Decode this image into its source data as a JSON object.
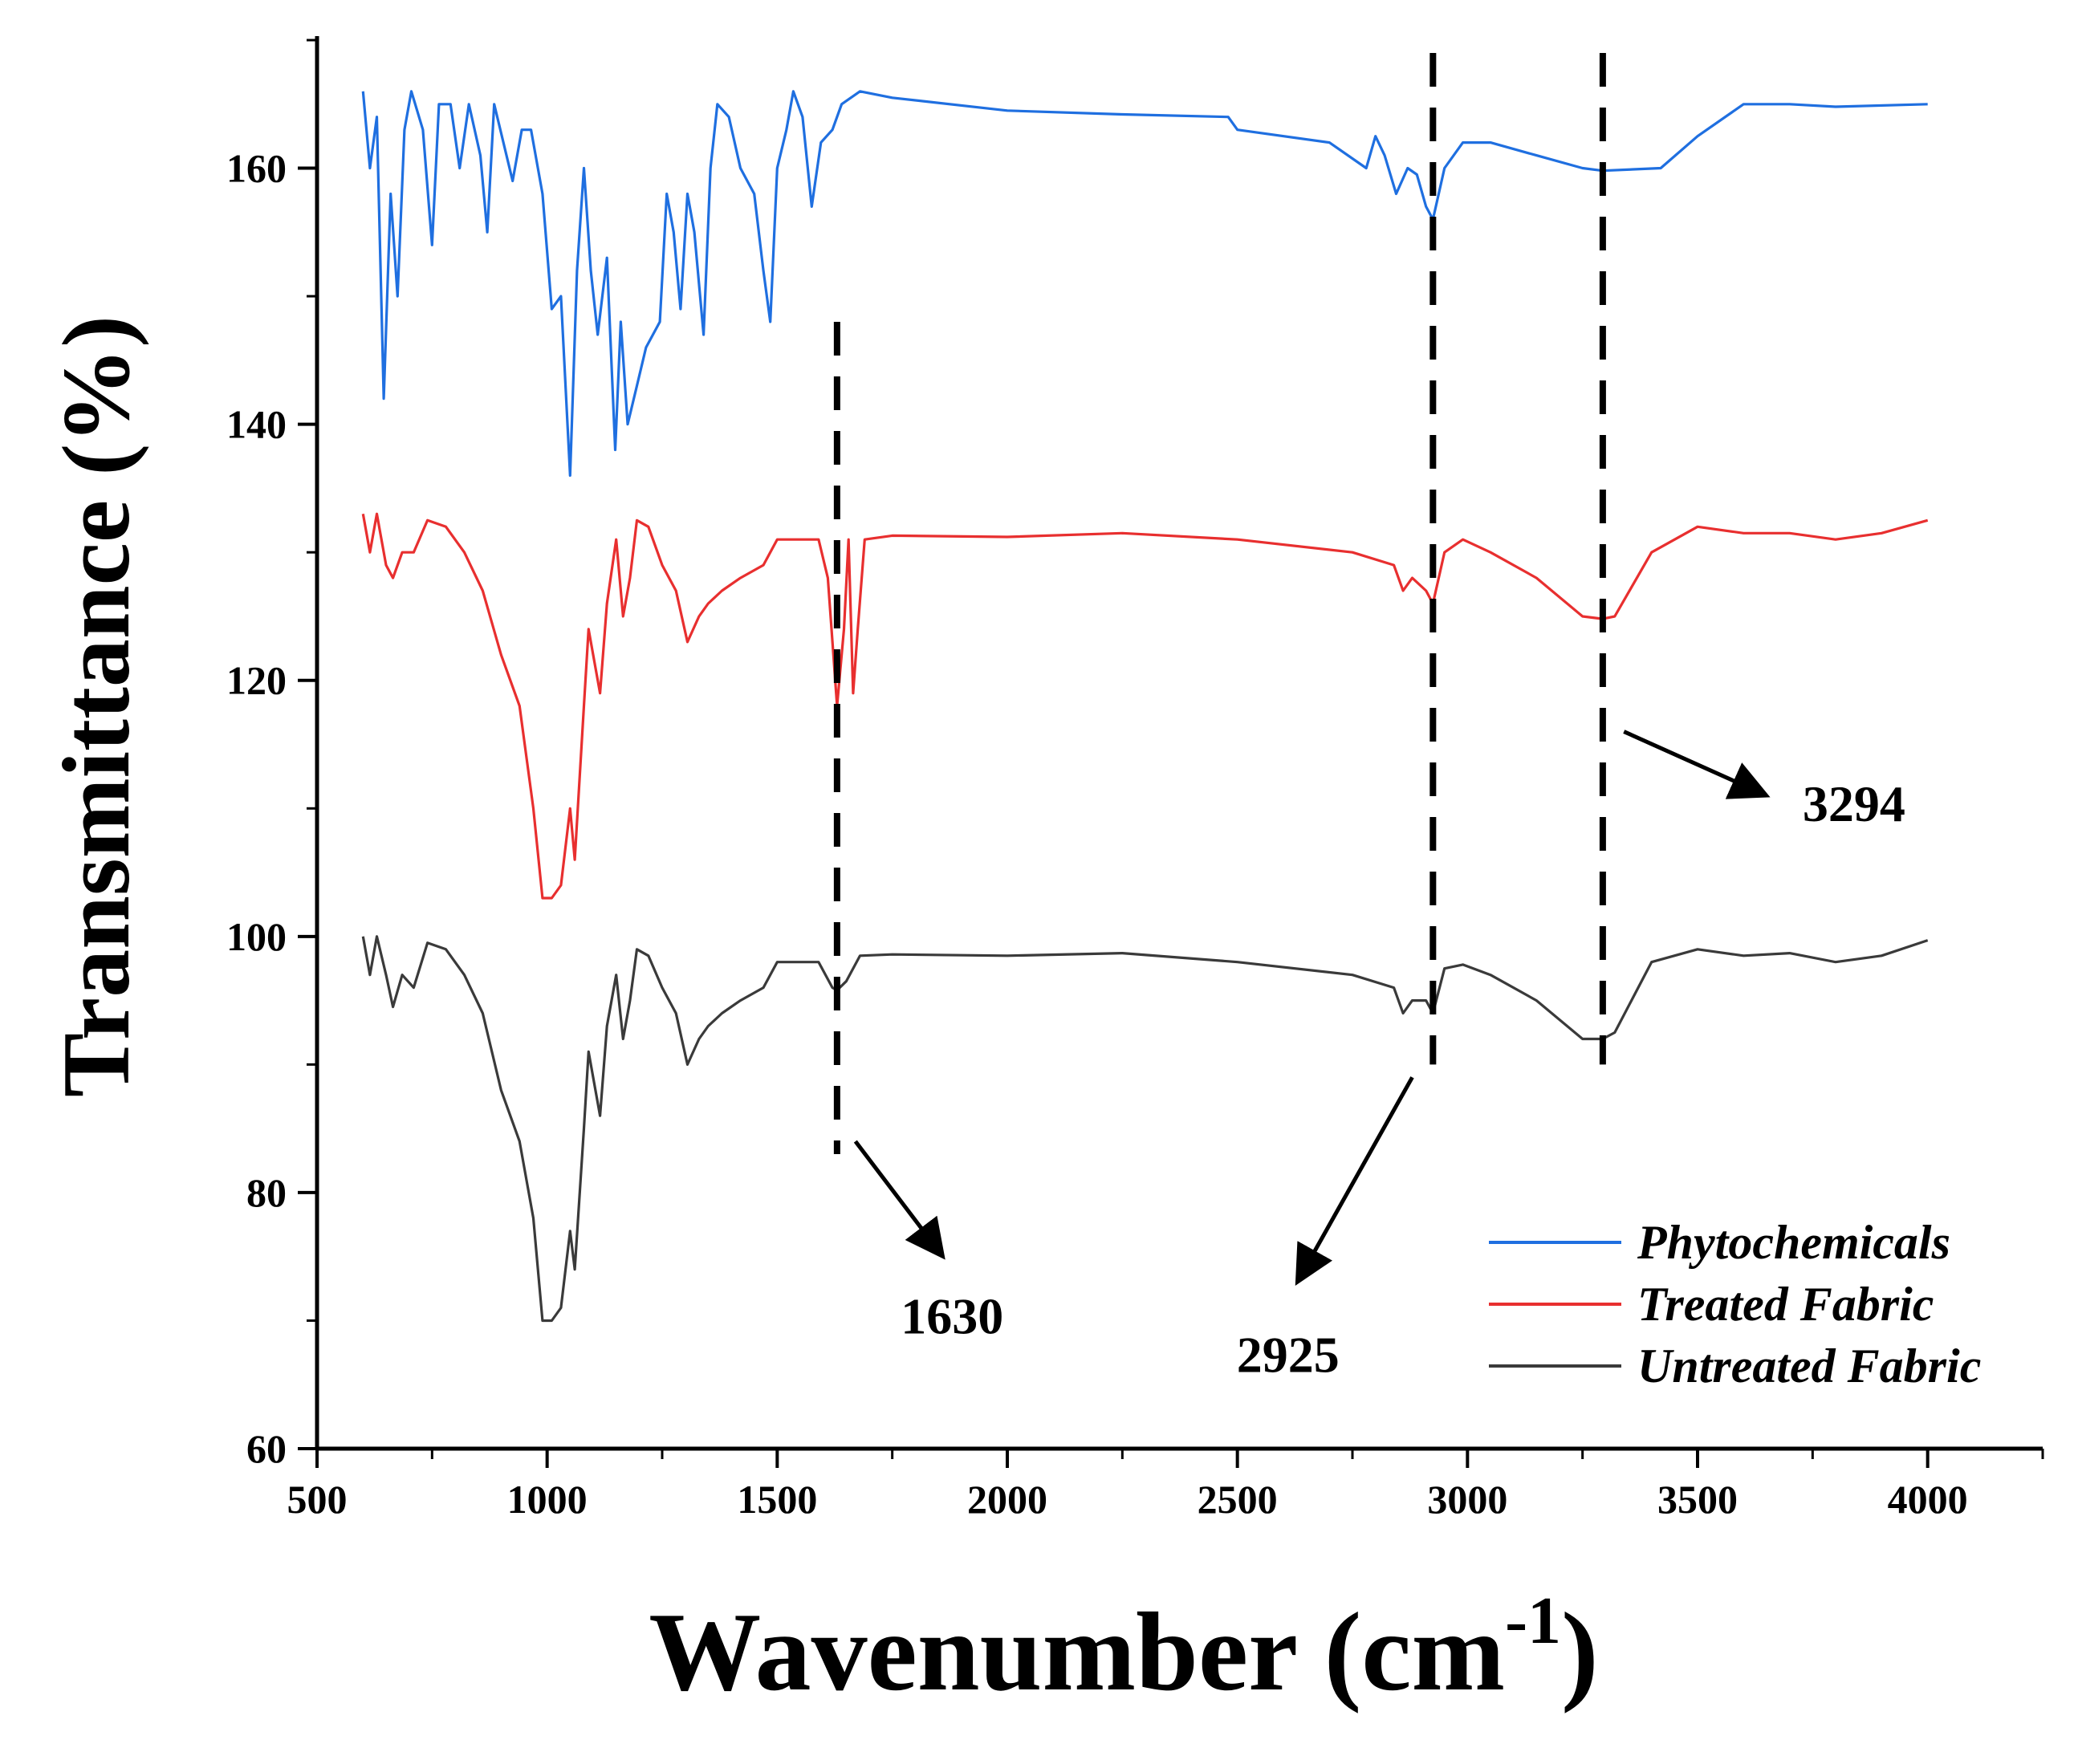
{
  "chart_data": {
    "type": "line",
    "title": "",
    "xlabel": "Wavenumber (cm",
    "xlabel_sup": "-1",
    "xlabel_close": ")",
    "ylabel": "Transmittance (%)",
    "xlim": [
      500,
      4250
    ],
    "ylim": [
      60,
      170
    ],
    "x_ticks": [
      500,
      1000,
      1500,
      2000,
      2500,
      3000,
      3500,
      4000
    ],
    "x_tick_labels": [
      "500",
      "1000",
      "1500",
      "2000",
      "2500",
      "3000",
      "3500",
      "4000"
    ],
    "y_ticks": [
      60,
      80,
      100,
      120,
      140,
      160
    ],
    "y_tick_labels": [
      "60",
      "80",
      "100",
      "120",
      "140",
      "160"
    ],
    "grid": false,
    "legend_position": "bottom-right",
    "series": [
      {
        "name": "Phytochemicals",
        "color": "#1f6fe0",
        "points": [
          [
            600,
            166
          ],
          [
            615,
            160
          ],
          [
            630,
            164
          ],
          [
            645,
            142
          ],
          [
            660,
            158
          ],
          [
            675,
            150
          ],
          [
            690,
            163
          ],
          [
            705,
            166
          ],
          [
            730,
            163
          ],
          [
            750,
            154
          ],
          [
            765,
            165
          ],
          [
            790,
            165
          ],
          [
            810,
            160
          ],
          [
            830,
            165
          ],
          [
            855,
            161
          ],
          [
            870,
            155
          ],
          [
            885,
            165
          ],
          [
            905,
            162
          ],
          [
            925,
            159
          ],
          [
            945,
            163
          ],
          [
            965,
            163
          ],
          [
            990,
            158
          ],
          [
            1010,
            149
          ],
          [
            1030,
            150
          ],
          [
            1050,
            136
          ],
          [
            1065,
            152
          ],
          [
            1080,
            160
          ],
          [
            1095,
            152
          ],
          [
            1110,
            147
          ],
          [
            1130,
            153
          ],
          [
            1148,
            138
          ],
          [
            1160,
            148
          ],
          [
            1175,
            140
          ],
          [
            1195,
            143
          ],
          [
            1215,
            146
          ],
          [
            1245,
            148
          ],
          [
            1260,
            158
          ],
          [
            1275,
            155
          ],
          [
            1290,
            149
          ],
          [
            1305,
            158
          ],
          [
            1320,
            155
          ],
          [
            1340,
            147
          ],
          [
            1355,
            160
          ],
          [
            1370,
            165
          ],
          [
            1395,
            164
          ],
          [
            1420,
            160
          ],
          [
            1450,
            158
          ],
          [
            1470,
            152
          ],
          [
            1485,
            148
          ],
          [
            1500,
            160
          ],
          [
            1520,
            163
          ],
          [
            1535,
            166
          ],
          [
            1555,
            164
          ],
          [
            1575,
            157
          ],
          [
            1595,
            162
          ],
          [
            1620,
            163
          ],
          [
            1640,
            165
          ],
          [
            1680,
            166
          ],
          [
            1750,
            165.5
          ],
          [
            2000,
            164.5
          ],
          [
            2250,
            164.2
          ],
          [
            2480,
            164
          ],
          [
            2500,
            163
          ],
          [
            2700,
            162
          ],
          [
            2780,
            160
          ],
          [
            2800,
            162.5
          ],
          [
            2820,
            161
          ],
          [
            2845,
            158
          ],
          [
            2870,
            160
          ],
          [
            2890,
            159.5
          ],
          [
            2910,
            157
          ],
          [
            2925,
            156
          ],
          [
            2950,
            160
          ],
          [
            2990,
            162
          ],
          [
            3050,
            162
          ],
          [
            3150,
            161
          ],
          [
            3250,
            160
          ],
          [
            3294,
            159.8
          ],
          [
            3420,
            160
          ],
          [
            3500,
            162.5
          ],
          [
            3600,
            165
          ],
          [
            3700,
            165
          ],
          [
            3800,
            164.8
          ],
          [
            4000,
            165
          ]
        ]
      },
      {
        "name": "Treated Fabric",
        "color": "#e82f2f",
        "points": [
          [
            600,
            133
          ],
          [
            615,
            130
          ],
          [
            630,
            133
          ],
          [
            650,
            129
          ],
          [
            665,
            128
          ],
          [
            685,
            130
          ],
          [
            710,
            130
          ],
          [
            740,
            132.5
          ],
          [
            780,
            132
          ],
          [
            820,
            130
          ],
          [
            860,
            127
          ],
          [
            900,
            122
          ],
          [
            940,
            118
          ],
          [
            970,
            110
          ],
          [
            990,
            103
          ],
          [
            1010,
            103
          ],
          [
            1030,
            104
          ],
          [
            1050,
            110
          ],
          [
            1060,
            106
          ],
          [
            1080,
            118
          ],
          [
            1090,
            124
          ],
          [
            1100,
            122
          ],
          [
            1115,
            119
          ],
          [
            1130,
            126
          ],
          [
            1150,
            131
          ],
          [
            1165,
            125
          ],
          [
            1180,
            128
          ],
          [
            1195,
            132.5
          ],
          [
            1220,
            132
          ],
          [
            1250,
            129
          ],
          [
            1280,
            127
          ],
          [
            1305,
            123
          ],
          [
            1330,
            125
          ],
          [
            1350,
            126
          ],
          [
            1380,
            127
          ],
          [
            1420,
            128
          ],
          [
            1470,
            129
          ],
          [
            1500,
            131
          ],
          [
            1590,
            131
          ],
          [
            1610,
            128
          ],
          [
            1630,
            118
          ],
          [
            1645,
            124
          ],
          [
            1655,
            131
          ],
          [
            1665,
            119
          ],
          [
            1675,
            124
          ],
          [
            1690,
            131
          ],
          [
            1750,
            131.3
          ],
          [
            2000,
            131.2
          ],
          [
            2250,
            131.5
          ],
          [
            2500,
            131
          ],
          [
            2750,
            130
          ],
          [
            2840,
            129
          ],
          [
            2860,
            127
          ],
          [
            2880,
            128
          ],
          [
            2910,
            127
          ],
          [
            2925,
            126
          ],
          [
            2950,
            130
          ],
          [
            2990,
            131
          ],
          [
            3050,
            130
          ],
          [
            3150,
            128
          ],
          [
            3250,
            125
          ],
          [
            3294,
            124.8
          ],
          [
            3320,
            125
          ],
          [
            3400,
            130
          ],
          [
            3500,
            132
          ],
          [
            3600,
            131.5
          ],
          [
            3700,
            131.5
          ],
          [
            3800,
            131
          ],
          [
            3900,
            131.5
          ],
          [
            4000,
            132.5
          ]
        ]
      },
      {
        "name": "Untreated Fabric",
        "color": "#3a3a3a",
        "points": [
          [
            600,
            100
          ],
          [
            615,
            97
          ],
          [
            630,
            100
          ],
          [
            650,
            97
          ],
          [
            665,
            94.5
          ],
          [
            685,
            97
          ],
          [
            710,
            96
          ],
          [
            740,
            99.5
          ],
          [
            780,
            99
          ],
          [
            820,
            97
          ],
          [
            860,
            94
          ],
          [
            900,
            88
          ],
          [
            940,
            84
          ],
          [
            970,
            78
          ],
          [
            990,
            70
          ],
          [
            1010,
            70
          ],
          [
            1030,
            71
          ],
          [
            1050,
            77
          ],
          [
            1060,
            74
          ],
          [
            1080,
            85
          ],
          [
            1090,
            91
          ],
          [
            1100,
            89
          ],
          [
            1115,
            86
          ],
          [
            1130,
            93
          ],
          [
            1150,
            97
          ],
          [
            1165,
            92
          ],
          [
            1180,
            95
          ],
          [
            1195,
            99
          ],
          [
            1220,
            98.5
          ],
          [
            1250,
            96
          ],
          [
            1280,
            94
          ],
          [
            1305,
            90
          ],
          [
            1330,
            92
          ],
          [
            1350,
            93
          ],
          [
            1380,
            94
          ],
          [
            1420,
            95
          ],
          [
            1470,
            96
          ],
          [
            1500,
            98
          ],
          [
            1590,
            98
          ],
          [
            1620,
            96
          ],
          [
            1630,
            95.8
          ],
          [
            1650,
            96.5
          ],
          [
            1680,
            98.5
          ],
          [
            1750,
            98.6
          ],
          [
            2000,
            98.5
          ],
          [
            2250,
            98.7
          ],
          [
            2500,
            98
          ],
          [
            2750,
            97
          ],
          [
            2840,
            96
          ],
          [
            2860,
            94
          ],
          [
            2880,
            95
          ],
          [
            2910,
            95
          ],
          [
            2925,
            94
          ],
          [
            2950,
            97.5
          ],
          [
            2990,
            97.8
          ],
          [
            3050,
            97
          ],
          [
            3150,
            95
          ],
          [
            3250,
            92
          ],
          [
            3294,
            92
          ],
          [
            3320,
            92.5
          ],
          [
            3400,
            98
          ],
          [
            3500,
            99
          ],
          [
            3600,
            98.5
          ],
          [
            3700,
            98.7
          ],
          [
            3800,
            98
          ],
          [
            3900,
            98.5
          ],
          [
            4000,
            99.7
          ]
        ]
      }
    ],
    "annotations": [
      {
        "label": "1630",
        "line_x": 1630,
        "line_y": [
          83,
          148
        ],
        "arrow_from": [
          1670,
          84
        ],
        "arrow_to": [
          1860,
          75
        ],
        "text_at": [
          1880,
          69
        ]
      },
      {
        "label": "2925",
        "line_x": 2925,
        "line_y": [
          90,
          169
        ],
        "arrow_from": [
          2880,
          89
        ],
        "arrow_to": [
          2630,
          73
        ],
        "text_at": [
          2610,
          66
        ]
      },
      {
        "label": "3294",
        "line_x": 3294,
        "line_y": [
          90,
          169
        ],
        "arrow_from": [
          3340,
          116
        ],
        "arrow_to": [
          3650,
          111
        ],
        "text_at": [
          3840,
          109
        ]
      }
    ]
  }
}
